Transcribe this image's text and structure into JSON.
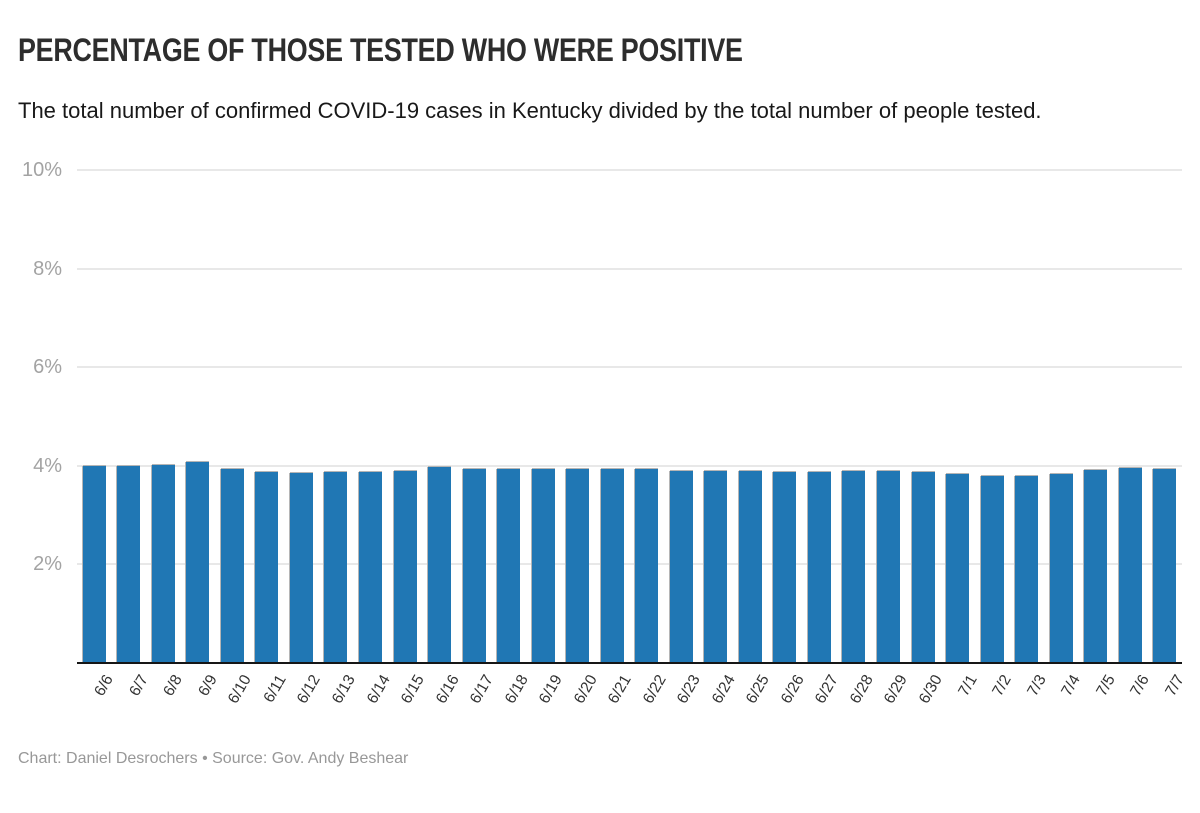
{
  "header": {
    "title": "PERCENTAGE OF THOSE TESTED WHO WERE POSITIVE",
    "subtitle": "The total number of confirmed COVID-19 cases in Kentucky divided by the total number of people tested."
  },
  "footer": {
    "credit": "Chart: Daniel Desrochers • Source: Gov. Andy Beshear"
  },
  "chart_data": {
    "type": "bar",
    "title": "PERCENTAGE OF THOSE TESTED WHO WERE POSITIVE",
    "subtitle": "The total number of confirmed COVID-19 cases in Kentucky divided by the total number of people tested.",
    "categories": [
      "6/6",
      "6/7",
      "6/8",
      "6/9",
      "6/10",
      "6/11",
      "6/12",
      "6/13",
      "6/14",
      "6/15",
      "6/16",
      "6/17",
      "6/18",
      "6/19",
      "6/20",
      "6/21",
      "6/22",
      "6/23",
      "6/24",
      "6/25",
      "6/26",
      "6/27",
      "6/28",
      "6/29",
      "6/30",
      "7/1",
      "7/2",
      "7/3",
      "7/4",
      "7/5",
      "7/6",
      "7/7"
    ],
    "values": [
      4.0,
      4.0,
      4.01,
      4.08,
      3.94,
      3.87,
      3.86,
      3.87,
      3.87,
      3.9,
      3.97,
      3.94,
      3.93,
      3.93,
      3.93,
      3.93,
      3.93,
      3.9,
      3.9,
      3.9,
      3.87,
      3.87,
      3.89,
      3.89,
      3.87,
      3.84,
      3.8,
      3.8,
      3.84,
      3.91,
      3.95,
      3.94
    ],
    "xlabel": "",
    "ylabel": "",
    "ylim": [
      0,
      10
    ],
    "yticks": [
      2,
      4,
      6,
      8,
      10
    ],
    "ytick_labels": [
      "2%",
      "4%",
      "6%",
      "8%",
      "10%"
    ],
    "grid": true,
    "legend": "none",
    "colors": {
      "bar": "#2077b4",
      "bar_edge": "#b5b5b5",
      "grid": "#e8e8e8",
      "axis_line": "#161616",
      "ytick_text": "#a3a3a3",
      "xtick_text": "#333333"
    }
  }
}
